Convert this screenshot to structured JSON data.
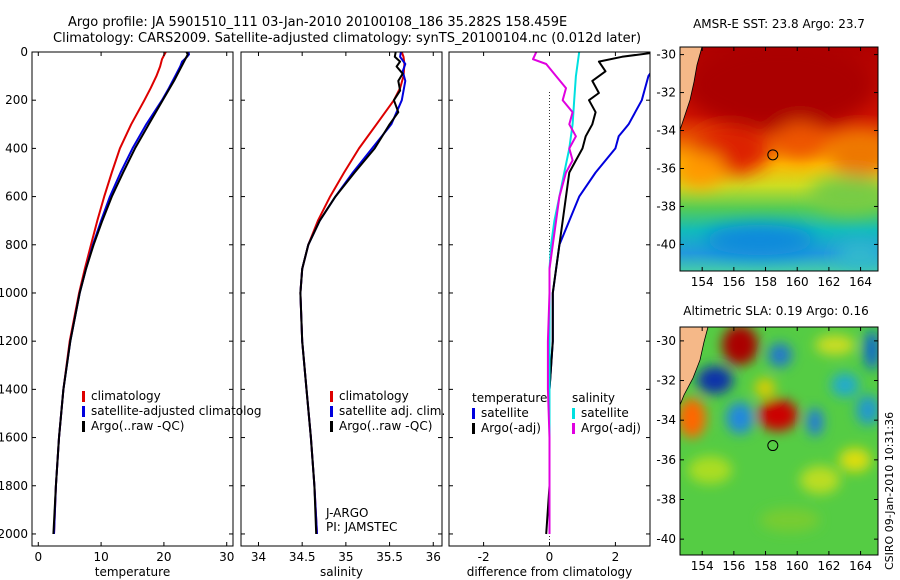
{
  "header": {
    "line1": "Argo profile: JA 5901510_111 03-Jan-2010 20100108_186 35.282S 158.459E",
    "line2": "Climatology: CARS2009. Satellite-adjusted climatology: synTS_20100104.nc (0.012d later)"
  },
  "side_label": "CSIRO 09-Jan-2010 10:31:36",
  "colors": {
    "climatology": "#dd0000",
    "satellite": "#0000dd",
    "argo": "#000000",
    "salinity_sat": "#00e0e0",
    "salinity_argo": "#e000e0"
  },
  "chart_data": [
    {
      "type": "line",
      "id": "temperature",
      "xlabel": "temperature",
      "ylabel": "",
      "xlim": [
        -1,
        31
      ],
      "ylim": [
        2050,
        0
      ],
      "y_reversed": true,
      "xticks": [
        0,
        10,
        20,
        30
      ],
      "yticks": [
        0,
        200,
        400,
        600,
        800,
        1000,
        1200,
        1400,
        1600,
        1800,
        2000
      ],
      "legend": [
        "climatology",
        "satellite-adjusted climatolog",
        "Argo(..raw -QC)"
      ],
      "series": [
        {
          "name": "climatology",
          "color": "#dd0000",
          "y": [
            0,
            10,
            30,
            60,
            100,
            150,
            200,
            300,
            400,
            500,
            600,
            700,
            800,
            900,
            1000,
            1200,
            1400,
            1600,
            1800,
            2000
          ],
          "x": [
            20.3,
            20.1,
            19.7,
            19.4,
            18.8,
            17.9,
            16.9,
            14.8,
            13.0,
            11.7,
            10.5,
            9.4,
            8.4,
            7.4,
            6.5,
            5.0,
            4.0,
            3.3,
            2.8,
            2.5
          ]
        },
        {
          "name": "satellite-adjusted climatolog",
          "color": "#0000dd",
          "y": [
            0,
            10,
            20,
            40,
            60,
            100,
            150,
            200,
            300,
            400,
            500,
            600,
            700,
            800,
            900,
            1000,
            1200,
            1400,
            1600,
            1800,
            2000
          ],
          "x": [
            23.9,
            24.0,
            23.7,
            22.9,
            22.6,
            21.8,
            20.8,
            19.7,
            17.2,
            15.0,
            13.1,
            11.4,
            10.0,
            8.7,
            7.6,
            6.6,
            5.1,
            4.0,
            3.3,
            2.8,
            2.5
          ]
        },
        {
          "name": "Argo(..raw -QC)",
          "color": "#000000",
          "y": [
            0,
            10,
            25,
            50,
            80,
            120,
            200,
            300,
            400,
            500,
            600,
            700,
            800,
            900,
            1000,
            1200,
            1400,
            1600,
            1800,
            2000
          ],
          "x": [
            23.6,
            23.8,
            23.5,
            23.0,
            22.4,
            21.6,
            19.8,
            17.6,
            15.4,
            13.5,
            11.7,
            10.2,
            8.8,
            7.6,
            6.6,
            5.1,
            4.0,
            3.3,
            2.8,
            2.4
          ]
        }
      ]
    },
    {
      "type": "line",
      "id": "salinity",
      "xlabel": "salinity",
      "ylabel": "",
      "xlim": [
        33.8,
        36.1
      ],
      "ylim": [
        2050,
        0
      ],
      "y_reversed": true,
      "xticks": [
        34,
        34.5,
        35,
        35.5,
        36
      ],
      "yticks": [
        0,
        200,
        400,
        600,
        800,
        1000,
        1200,
        1400,
        1600,
        1800,
        2000
      ],
      "legend": [
        "climatology",
        "satellite adj. clim.",
        "Argo(..raw -QC)"
      ],
      "annotations": [
        "J-ARGO",
        "PI: JAMSTEC"
      ],
      "series": [
        {
          "name": "climatology",
          "color": "#dd0000",
          "y": [
            0,
            20,
            50,
            100,
            150,
            200,
            300,
            400,
            500,
            600,
            700,
            800,
            900,
            1000,
            1200,
            1400,
            1600,
            1800,
            2000
          ],
          "x": [
            35.64,
            35.66,
            35.67,
            35.66,
            35.62,
            35.55,
            35.35,
            35.15,
            34.98,
            34.82,
            34.68,
            34.57,
            34.5,
            34.48,
            34.5,
            34.55,
            34.6,
            34.64,
            34.67
          ]
        },
        {
          "name": "satellite adj. clim.",
          "color": "#0000dd",
          "y": [
            0,
            20,
            50,
            80,
            120,
            200,
            300,
            400,
            500,
            600,
            700,
            800,
            900,
            1000,
            1200,
            1400,
            1600,
            1800,
            2000
          ],
          "x": [
            35.63,
            35.62,
            35.68,
            35.65,
            35.68,
            35.64,
            35.52,
            35.3,
            35.08,
            34.88,
            34.7,
            34.57,
            34.5,
            34.48,
            34.5,
            34.55,
            34.6,
            34.64,
            34.67
          ]
        },
        {
          "name": "Argo(..raw -QC)",
          "color": "#000000",
          "y": [
            0,
            20,
            40,
            60,
            90,
            120,
            160,
            200,
            250,
            300,
            400,
            500,
            600,
            700,
            800,
            900,
            1000,
            1200,
            1400,
            1600,
            1800,
            2000
          ],
          "x": [
            35.57,
            35.56,
            35.62,
            35.58,
            35.65,
            35.6,
            35.62,
            35.55,
            35.6,
            35.5,
            35.33,
            35.1,
            34.88,
            34.7,
            34.57,
            34.5,
            34.48,
            34.5,
            34.55,
            34.6,
            34.64,
            34.66
          ]
        }
      ]
    },
    {
      "type": "line",
      "id": "difference",
      "xlabel": "difference from climatology",
      "ylabel": "",
      "xlim": [
        -3.05,
        3.05
      ],
      "ylim": [
        2050,
        0
      ],
      "y_reversed": true,
      "xticks": [
        -2,
        0,
        2
      ],
      "yticks": [
        0,
        200,
        400,
        600,
        800,
        1000,
        1200,
        1400,
        1600,
        1800,
        2000
      ],
      "zero_line": "dotted",
      "legend_temperature": [
        "temperature",
        "satellite",
        "Argo(-adj)"
      ],
      "legend_salinity": [
        "salinity",
        "satellite",
        "Argo(-adj)"
      ],
      "series": [
        {
          "name": "temperature satellite",
          "color": "#0000dd",
          "y": [
            0,
            20,
            40,
            60,
            100,
            150,
            200,
            250,
            300,
            350,
            400,
            500,
            600,
            700,
            800,
            900,
            1000,
            1200,
            1400,
            1600,
            1800,
            2000
          ],
          "x": [
            3.7,
            3.5,
            3.2,
            3.2,
            3.0,
            2.9,
            2.8,
            2.6,
            2.4,
            2.1,
            2.0,
            1.4,
            0.9,
            0.6,
            0.3,
            0.2,
            0.1,
            0.1,
            0.0,
            0.0,
            0.0,
            0.0
          ]
        },
        {
          "name": "temperature Argo(-adj)",
          "color": "#000000",
          "y": [
            0,
            20,
            40,
            80,
            120,
            170,
            200,
            250,
            300,
            350,
            400,
            450,
            500,
            600,
            700,
            800,
            900,
            1000,
            1200,
            1400,
            1600,
            1800,
            2000
          ],
          "x": [
            3.3,
            2.2,
            1.5,
            1.7,
            1.3,
            1.5,
            1.2,
            1.4,
            1.3,
            1.1,
            1.0,
            0.8,
            0.6,
            0.5,
            0.4,
            0.3,
            0.2,
            0.1,
            0.1,
            0.0,
            0.0,
            0.0,
            -0.1
          ]
        },
        {
          "name": "salinity satellite",
          "color": "#00e0e0",
          "y": [
            0,
            100,
            200,
            300,
            400,
            500,
            600,
            700,
            800,
            900,
            1000,
            1200,
            1400,
            1600,
            1800,
            2000
          ],
          "x": [
            0.9,
            0.8,
            0.75,
            0.7,
            0.6,
            0.45,
            0.3,
            0.15,
            0.05,
            0.0,
            0.0,
            0.0,
            0.0,
            0.0,
            0.0,
            0.0
          ]
        },
        {
          "name": "salinity Argo(-adj)",
          "color": "#e000e0",
          "y": [
            0,
            30,
            50,
            100,
            150,
            200,
            250,
            300,
            350,
            400,
            450,
            500,
            600,
            700,
            800,
            900,
            1000,
            1200,
            1400,
            1600,
            1800,
            2000
          ],
          "x": [
            -0.4,
            -0.5,
            -0.1,
            0.2,
            0.5,
            0.4,
            0.7,
            0.6,
            0.8,
            0.6,
            0.7,
            0.5,
            0.3,
            0.2,
            0.1,
            0.0,
            0.0,
            -0.05,
            -0.05,
            0.0,
            0.0,
            0.0
          ]
        }
      ]
    },
    {
      "type": "heatmap",
      "id": "sst_map",
      "title": "AMSR-E SST: 23.8  Argo: 23.7",
      "xlim": [
        152.6,
        165.1
      ],
      "ylim": [
        -41.4,
        -29.6
      ],
      "xticks": [
        154,
        156,
        158,
        160,
        162,
        164
      ],
      "yticks": [
        -30,
        -32,
        -34,
        -36,
        -38,
        -40
      ],
      "marker": {
        "lon": 158.46,
        "lat": -35.28
      }
    },
    {
      "type": "heatmap",
      "id": "sla_map",
      "title": "Altimetric SLA: 0.19  Argo: 0.16",
      "xlim": [
        152.6,
        165.1
      ],
      "ylim": [
        -40.8,
        -29.3
      ],
      "xticks": [
        154,
        156,
        158,
        160,
        162,
        164
      ],
      "yticks": [
        -30,
        -32,
        -34,
        -36,
        -38,
        -40
      ],
      "marker": {
        "lon": 158.46,
        "lat": -35.28
      }
    }
  ]
}
